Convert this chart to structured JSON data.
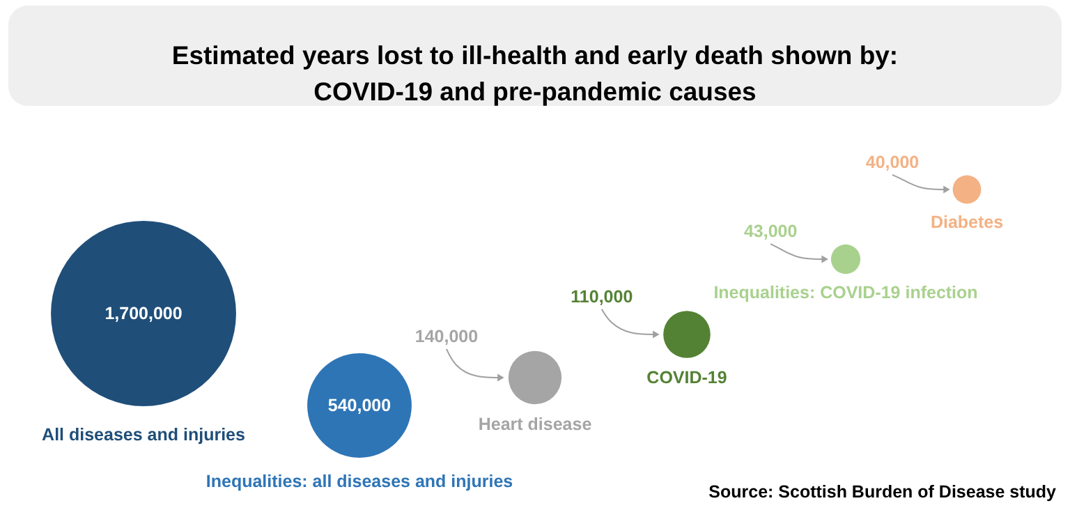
{
  "chart_data": {
    "type": "other",
    "title": "Estimated years lost to ill-health and early death shown by:\nCOVID-19 and pre-pandemic causes",
    "categories": [
      "All diseases and injuries",
      "Inequalities: all diseases and injuries",
      "Heart disease",
      "COVID-19",
      "Inequalities: COVID-19 infection",
      "Diabetes"
    ],
    "values": [
      1700000,
      540000,
      140000,
      110000,
      43000,
      40000
    ],
    "colors": [
      "#1f4e79",
      "#2e75b6",
      "#a5a5a5",
      "#548235",
      "#a9d18e",
      "#f4b183"
    ],
    "value_labels": [
      "1,700,000",
      "540,000",
      "140,000",
      "110,000",
      "43,000",
      "40,000"
    ],
    "annotations": [
      "Source: Scottish Burden of Disease study"
    ]
  }
}
